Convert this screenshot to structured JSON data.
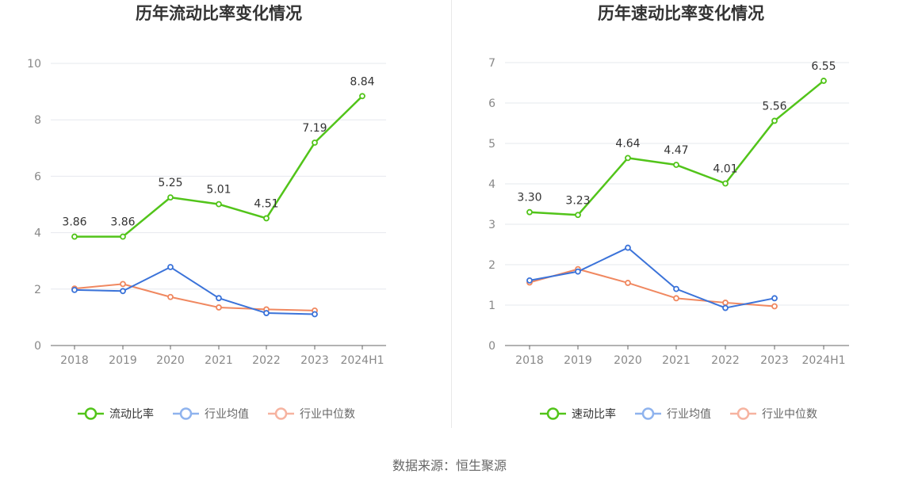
{
  "source_label": "数据来源：恒生聚源",
  "colors": {
    "primary": "#52c41a",
    "avg": "#3b73d9",
    "median": "#f08860"
  },
  "chart_data": [
    {
      "type": "line",
      "title": "历年流动比率变化情况",
      "categories": [
        "2018",
        "2019",
        "2020",
        "2021",
        "2022",
        "2023",
        "2024H1"
      ],
      "ylim": [
        0,
        10
      ],
      "yticks": [
        0,
        2,
        4,
        6,
        8,
        10
      ],
      "ytick_labels": [
        "0",
        "2",
        "4",
        "6",
        "8",
        "10"
      ],
      "grid": true,
      "legend_position": "bottom",
      "series": [
        {
          "name": "流动比率",
          "values": [
            3.86,
            3.86,
            5.25,
            5.01,
            4.51,
            7.19,
            8.84
          ],
          "labels": [
            "3.86",
            "3.86",
            "5.25",
            "5.01",
            "4.51",
            "7.19",
            "8.84"
          ]
        },
        {
          "name": "行业均值",
          "values": [
            1.97,
            1.93,
            2.78,
            1.68,
            1.15,
            1.11,
            null
          ]
        },
        {
          "name": "行业中位数",
          "values": [
            2.02,
            2.18,
            1.72,
            1.35,
            1.28,
            1.24,
            null
          ]
        }
      ]
    },
    {
      "type": "line",
      "title": "历年速动比率变化情况",
      "categories": [
        "2018",
        "2019",
        "2020",
        "2021",
        "2022",
        "2023",
        "2024H1"
      ],
      "ylim": [
        0,
        7
      ],
      "yticks": [
        0,
        1,
        2,
        3,
        4,
        5,
        6,
        7
      ],
      "ytick_labels": [
        "0",
        "1",
        "2",
        "3",
        "4",
        "5",
        "6",
        "7"
      ],
      "grid": true,
      "legend_position": "bottom",
      "series": [
        {
          "name": "速动比率",
          "values": [
            3.3,
            3.23,
            4.64,
            4.47,
            4.01,
            5.56,
            6.55
          ],
          "labels": [
            "3.30",
            "3.23",
            "4.64",
            "4.47",
            "4.01",
            "5.56",
            "6.55"
          ]
        },
        {
          "name": "行业均值",
          "values": [
            1.61,
            1.83,
            2.42,
            1.4,
            0.93,
            1.17,
            null
          ]
        },
        {
          "name": "行业中位数",
          "values": [
            1.56,
            1.89,
            1.55,
            1.17,
            1.06,
            0.97,
            null
          ]
        }
      ]
    }
  ]
}
